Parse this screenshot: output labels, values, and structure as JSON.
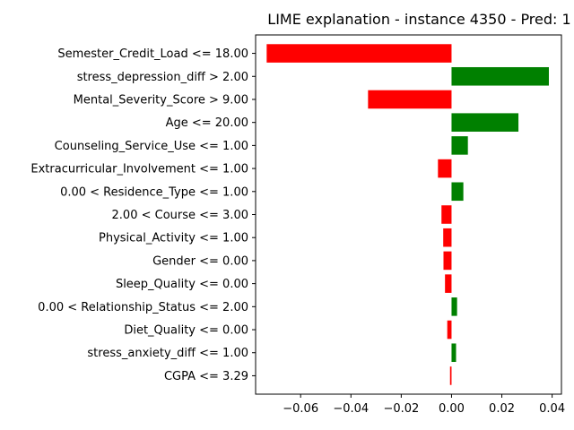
{
  "chart_data": {
    "type": "bar",
    "orientation": "horizontal",
    "title": "LIME explanation - instance 4350 - Pred: 1",
    "xlabel": "",
    "ylabel": "",
    "xlim": [
      -0.0779,
      0.0437
    ],
    "xticks": [
      -0.06,
      -0.04,
      -0.02,
      0.0,
      0.02,
      0.04
    ],
    "xtick_labels": [
      "−0.06",
      "−0.04",
      "−0.02",
      "0.00",
      "0.02",
      "0.04"
    ],
    "grid": false,
    "colors": {
      "positive": "#008000",
      "negative": "#ff0000"
    },
    "categories": [
      "Semester_Credit_Load <= 18.00",
      "stress_depression_diff > 2.00",
      "Mental_Severity_Score > 9.00",
      "Age <= 20.00",
      "Counseling_Service_Use <= 1.00",
      "Extracurricular_Involvement <= 1.00",
      "0.00 < Residence_Type <= 1.00",
      "2.00 < Course <= 3.00",
      "Physical_Activity <= 1.00",
      "Gender <= 0.00",
      "Sleep_Quality <= 0.00",
      "0.00 < Relationship_Status <= 2.00",
      "Diet_Quality <= 0.00",
      "stress_anxiety_diff <= 1.00",
      "CGPA <= 3.29"
    ],
    "values": [
      -0.0735,
      0.0387,
      -0.0332,
      0.0266,
      0.0065,
      -0.0054,
      0.0047,
      -0.004,
      -0.0033,
      -0.0032,
      -0.0026,
      0.0022,
      -0.0017,
      0.0018,
      -0.0006
    ]
  }
}
